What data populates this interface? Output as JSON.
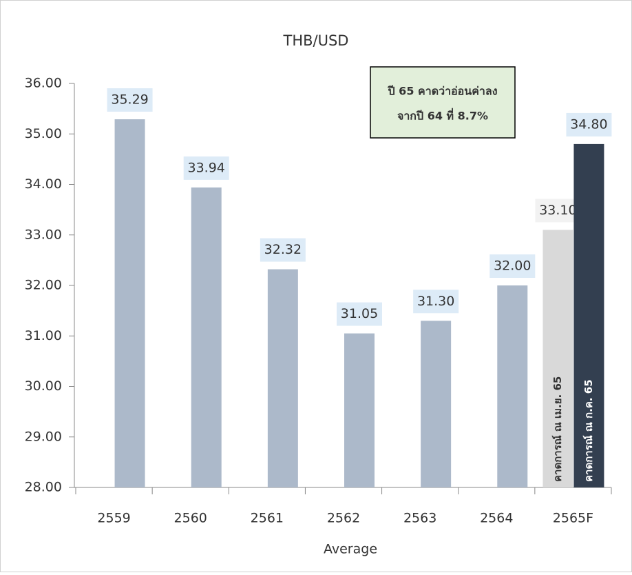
{
  "chart_data": {
    "type": "bar",
    "title": "THB/USD",
    "x_label": "Average",
    "categories": [
      "2559",
      "2560",
      "2561",
      "2562",
      "2563",
      "2564",
      "2565F"
    ],
    "series": [
      {
        "color": "#acb9ca",
        "label_bg": "#ddebf7",
        "values": [
          35.29,
          33.94,
          32.32,
          31.05,
          31.3,
          32.0,
          null
        ],
        "value_labels": [
          "35.29",
          "33.94",
          "32.32",
          "31.05",
          "31.30",
          "32.00",
          null
        ]
      },
      {
        "name": "คาดการณ์ ณ เม.ย. 65",
        "color": "#d9d9d9",
        "label_bg": "#f2f2f2",
        "values": [
          null,
          null,
          null,
          null,
          null,
          null,
          33.1
        ],
        "value_labels": [
          null,
          null,
          null,
          null,
          null,
          null,
          "33.10"
        ]
      },
      {
        "name": "คาดการณ์ ณ ก.ค. 65",
        "color": "#333f50",
        "label_bg": "#ddebf7",
        "values": [
          null,
          null,
          null,
          null,
          null,
          null,
          34.8
        ],
        "value_labels": [
          null,
          null,
          null,
          null,
          null,
          null,
          "34.80"
        ]
      }
    ],
    "annotation": [
      "ปี 65 คาดว่าอ่อนค่าลง",
      "จากปี 64 ที่ 8.7%"
    ],
    "ylim": [
      28,
      36
    ],
    "yticks": [
      {
        "value": 28,
        "label": "28.00"
      },
      {
        "value": 29,
        "label": "29.00"
      },
      {
        "value": 30,
        "label": "30.00"
      },
      {
        "value": 31,
        "label": "31.00"
      },
      {
        "value": 32,
        "label": "32.00"
      },
      {
        "value": 33,
        "label": "33.00"
      },
      {
        "value": 34,
        "label": "34.00"
      },
      {
        "value": 35,
        "label": "35.00"
      },
      {
        "value": 36,
        "label": "36.00"
      }
    ]
  }
}
